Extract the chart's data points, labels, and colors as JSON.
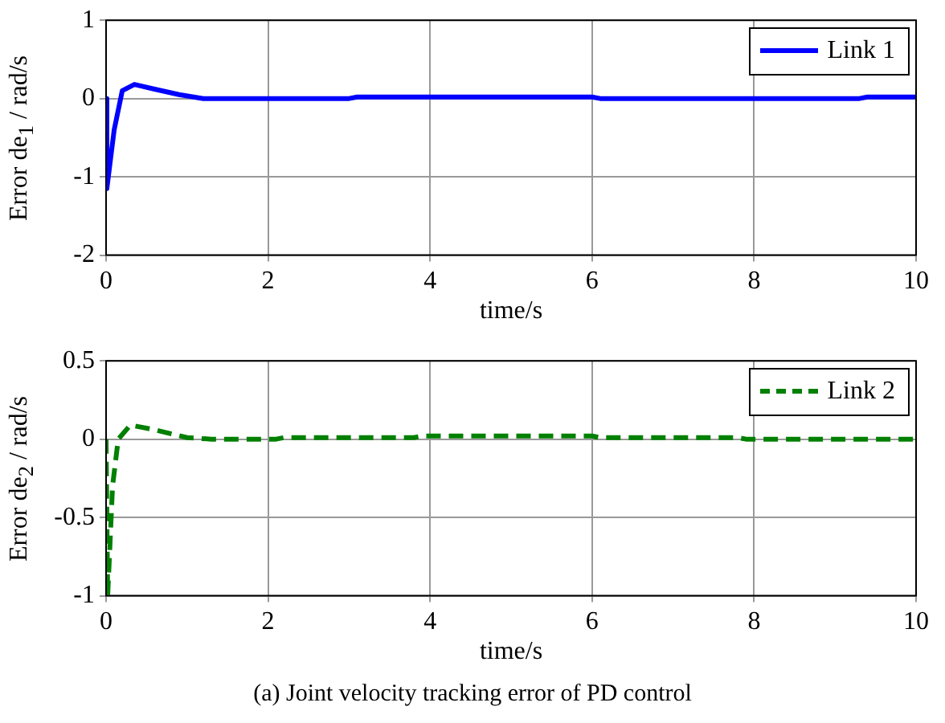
{
  "chart_data": [
    {
      "type": "line",
      "xlabel": "time/s",
      "ylabel": "Error de$_{1}$ / rad/s",
      "xlim": [
        0,
        10
      ],
      "xticks": [
        0,
        2,
        4,
        6,
        8,
        10
      ],
      "ylim": [
        -2,
        1
      ],
      "yticks": [
        -2,
        -1,
        0,
        1
      ],
      "grid": true,
      "legend": "top right",
      "line_style": "solid",
      "series": [
        {
          "name": "Link 1",
          "color": "#0000ff",
          "x": [
            0,
            0.01,
            0.1,
            0.2,
            0.35,
            0.6,
            0.9,
            1.2,
            3,
            3.1,
            6,
            6.1,
            9.3,
            9.4,
            10
          ],
          "values": [
            0,
            -1.15,
            -0.4,
            0.1,
            0.18,
            0.12,
            0.05,
            0,
            0,
            0.02,
            0.02,
            0,
            0,
            0.02,
            0.02
          ]
        }
      ]
    },
    {
      "type": "line",
      "xlabel": "time/s",
      "ylabel": "Error de$_{2}$ / rad/s",
      "xlim": [
        0,
        10
      ],
      "xticks": [
        0,
        2,
        4,
        6,
        8,
        10
      ],
      "ylim": [
        -1,
        0.5
      ],
      "yticks": [
        -1,
        -0.5,
        0,
        0.5
      ],
      "grid": true,
      "legend": "top right",
      "line_style": "dashed",
      "annotations": [
        "(a) Joint velocity tracking error of PD control"
      ],
      "series": [
        {
          "name": "Link 2",
          "color": "#008000",
          "x": [
            0,
            0.02,
            0.08,
            0.15,
            0.3,
            0.6,
            1,
            1.3,
            2.1,
            2.2,
            3.8,
            3.9,
            6,
            6.1,
            7.8,
            7.9,
            10
          ],
          "values": [
            0,
            -1,
            -0.3,
            0,
            0.09,
            0.06,
            0.01,
            0,
            0,
            0.01,
            0.01,
            0.02,
            0.02,
            0.01,
            0.01,
            0,
            0
          ]
        }
      ]
    }
  ]
}
